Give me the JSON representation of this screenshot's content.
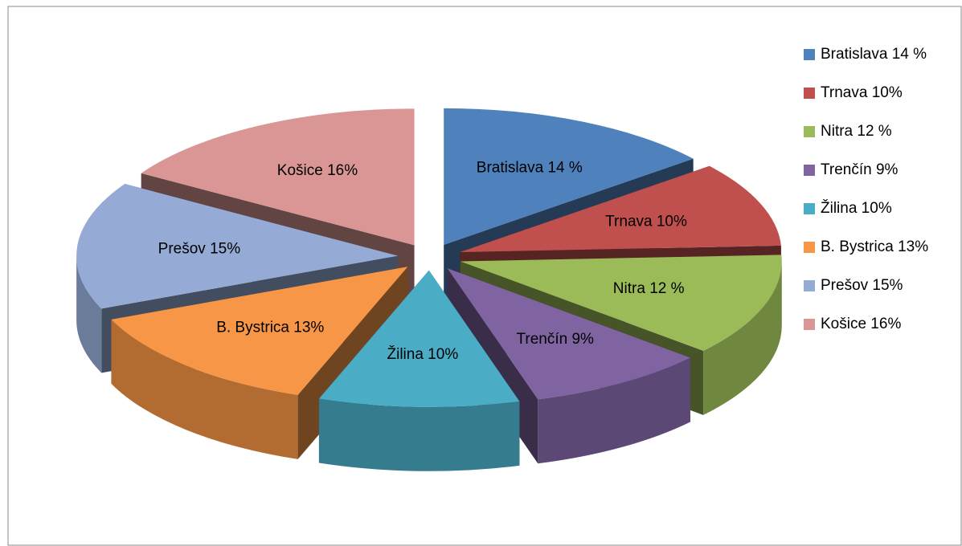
{
  "chart_data": {
    "type": "pie3d",
    "categories": [
      "Bratislava 14 %",
      "Trnava 10%",
      "Nitra 12 %",
      "Trenčín 9%",
      "Žilina 10%",
      "B. Bystrica 13%",
      "Prešov 15%",
      "Košice 16%"
    ],
    "values": [
      14,
      10,
      12,
      9,
      10,
      13,
      15,
      16
    ],
    "colors": [
      "#4f81bd",
      "#c0504d",
      "#9bbb59",
      "#8064a2",
      "#4bacc6",
      "#f79646",
      "#95abd6",
      "#d99694"
    ],
    "legend": "right"
  }
}
